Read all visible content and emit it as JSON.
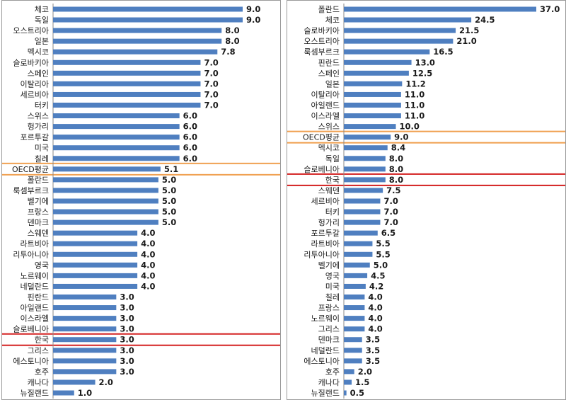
{
  "chart_data": [
    {
      "type": "bar",
      "orientation": "horizontal",
      "categories": [
        "체코",
        "독일",
        "오스트리아",
        "일본",
        "멕시코",
        "슬로바키아",
        "스페인",
        "이탈리아",
        "세르비아",
        "터키",
        "스위스",
        "헝가리",
        "포르투갈",
        "미국",
        "칠레",
        "OECD평균",
        "폴란드",
        "룩셈부르크",
        "벨기에",
        "프랑스",
        "덴마크",
        "스웨덴",
        "라트비아",
        "리투아니아",
        "영국",
        "노르웨이",
        "네덜란드",
        "핀란드",
        "아일랜드",
        "이스라엘",
        "슬로베니아",
        "한국",
        "그리스",
        "에스토니아",
        "호주",
        "캐나다",
        "뉴질랜드"
      ],
      "values": [
        9.0,
        9.0,
        8.0,
        8.0,
        7.8,
        7.0,
        7.0,
        7.0,
        7.0,
        7.0,
        6.0,
        6.0,
        6.0,
        6.0,
        6.0,
        5.1,
        5.0,
        5.0,
        5.0,
        5.0,
        5.0,
        4.0,
        4.0,
        4.0,
        4.0,
        4.0,
        4.0,
        3.0,
        3.0,
        3.0,
        3.0,
        3.0,
        3.0,
        3.0,
        3.0,
        2.0,
        1.0
      ],
      "value_labels": [
        "9.0",
        "9.0",
        "8.0",
        "8.0",
        "7.8",
        "7.0",
        "7.0",
        "7.0",
        "7.0",
        "7.0",
        "6.0",
        "6.0",
        "6.0",
        "6.0",
        "6.0",
        "5.1",
        "5.0",
        "5.0",
        "5.0",
        "5.0",
        "5.0",
        "4.0",
        "4.0",
        "4.0",
        "4.0",
        "4.0",
        "4.0",
        "3.0",
        "3.0",
        "3.0",
        "3.0",
        "3.0",
        "3.0",
        "3.0",
        "3.0",
        "2.0",
        "1.0"
      ],
      "xlim": [
        0,
        9.0
      ],
      "highlights": [
        {
          "category": "OECD평균",
          "color": "#f0a050"
        },
        {
          "category": "한국",
          "color": "#d42020"
        }
      ],
      "bar_color": "#4f7fc0",
      "grid": false
    },
    {
      "type": "bar",
      "orientation": "horizontal",
      "categories": [
        "폴란드",
        "체코",
        "슬로바키아",
        "오스트리아",
        "룩셈부르크",
        "핀란드",
        "스페인",
        "일본",
        "이탈리아",
        "아일랜드",
        "이스라엘",
        "스위스",
        "OECD평균",
        "멕시코",
        "독일",
        "슬로베니아",
        "한국",
        "스웨덴",
        "세르비아",
        "터키",
        "헝가리",
        "포르투갈",
        "라트비아",
        "리투아니아",
        "벨기에",
        "영국",
        "미국",
        "칠레",
        "프랑스",
        "노르웨이",
        "그리스",
        "덴마크",
        "네덜란드",
        "에스토니아",
        "호주",
        "캐나다",
        "뉴질랜드"
      ],
      "values": [
        37.0,
        24.5,
        21.5,
        21.0,
        16.5,
        13.0,
        12.5,
        11.2,
        11.0,
        11.0,
        11.0,
        10.0,
        9.0,
        8.4,
        8.0,
        8.0,
        8.0,
        7.5,
        7.0,
        7.0,
        7.0,
        6.5,
        5.5,
        5.5,
        5.0,
        4.5,
        4.2,
        4.0,
        4.0,
        4.0,
        4.0,
        3.5,
        3.5,
        3.5,
        2.0,
        1.5,
        0.5
      ],
      "value_labels": [
        "37.0",
        "24.5",
        "21.5",
        "21.0",
        "16.5",
        "13.0",
        "12.5",
        "11.2",
        "11.0",
        "11.0",
        "11.0",
        "10.0",
        "9.0",
        "8.4",
        "8.0",
        "8.0",
        "8.0",
        "7.5",
        "7.0",
        "7.0",
        "7.0",
        "6.5",
        "5.5",
        "5.5",
        "5.0",
        "4.5",
        "4.2",
        "4.0",
        "4.0",
        "4.0",
        "4.0",
        "3.5",
        "3.5",
        "3.5",
        "2.0",
        "1.5",
        "0.5"
      ],
      "xlim": [
        0,
        37.0
      ],
      "highlights": [
        {
          "category": "OECD평균",
          "color": "#f0a050"
        },
        {
          "category": "한국",
          "color": "#d42020"
        }
      ],
      "bar_color": "#4f7fc0",
      "grid": false
    }
  ]
}
